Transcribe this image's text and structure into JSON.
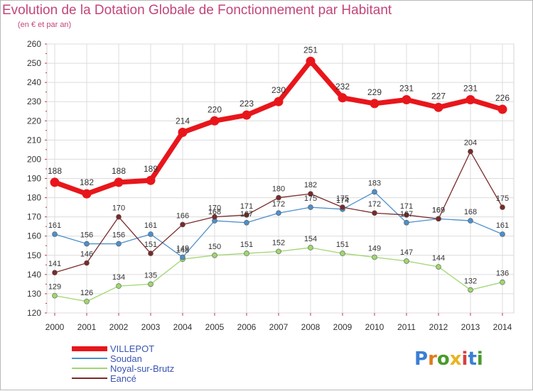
{
  "title": "Evolution de la Dotation Globale de Fonctionnement par Habitant",
  "subtitle": "(en € et par an)",
  "logo": {
    "text": "Proxiti",
    "letters": [
      "P",
      "r",
      "o",
      "x",
      "i",
      "t",
      "i"
    ],
    "colors": [
      "#3a7fd5",
      "#e07b1c",
      "#4a9a2c",
      "#e8b41e",
      "#d64040",
      "#3a7fd5",
      "#4a9a2c"
    ]
  },
  "chart_data": {
    "type": "line",
    "title": "Evolution de la Dotation Globale de Fonctionnement par Habitant",
    "subtitle": "(en € et par an)",
    "xlabel": "",
    "ylabel": "",
    "ylim": [
      120,
      260
    ],
    "yticks": [
      120,
      130,
      140,
      150,
      160,
      170,
      180,
      190,
      200,
      210,
      220,
      230,
      240,
      250,
      260
    ],
    "grid": true,
    "legend_position": "bottom-left",
    "x": [
      "2000",
      "2001",
      "2002",
      "2003",
      "2004",
      "2005",
      "2006",
      "2007",
      "2008",
      "2009",
      "2010",
      "2011",
      "2012",
      "2013",
      "2014"
    ],
    "series": [
      {
        "name": "VILLEPOT",
        "color": "#e8161b",
        "values": [
          188,
          182,
          188,
          189,
          214,
          220,
          223,
          230,
          251,
          232,
          229,
          231,
          227,
          231,
          226
        ]
      },
      {
        "name": "Soudan",
        "color": "#4c8fcb",
        "values": [
          161,
          156,
          156,
          161,
          149,
          168,
          167,
          172,
          175,
          174,
          183,
          167,
          169,
          168,
          161
        ]
      },
      {
        "name": "Noyal-sur-Brutz",
        "color": "#9fd66f",
        "values": [
          129,
          126,
          134,
          135,
          148,
          150,
          151,
          152,
          154,
          151,
          149,
          147,
          144,
          132,
          136
        ]
      },
      {
        "name": "Eancé",
        "color": "#7a2a2a",
        "values": [
          141,
          146,
          170,
          151,
          166,
          170,
          171,
          180,
          182,
          175,
          172,
          171,
          169,
          204,
          175
        ]
      }
    ]
  }
}
